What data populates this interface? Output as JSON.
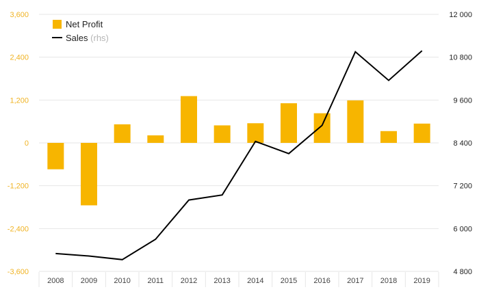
{
  "chart_data": {
    "type": "bar+line",
    "title": "",
    "categories": [
      "2008",
      "2009",
      "2010",
      "2011",
      "2012",
      "2013",
      "2014",
      "2015",
      "2016",
      "2017",
      "2018",
      "2019"
    ],
    "series": [
      {
        "name": "Net Profit",
        "type": "bar",
        "axis": "left",
        "color": "#f7b500",
        "values": [
          -740,
          -1750,
          520,
          210,
          1310,
          490,
          550,
          1110,
          830,
          1190,
          330,
          540
        ]
      },
      {
        "name": "Sales",
        "name_suffix": "(rhs)",
        "type": "line",
        "axis": "right",
        "color": "#000000",
        "values": [
          5300,
          5230,
          5130,
          5700,
          6800,
          6940,
          8440,
          8100,
          8890,
          10950,
          10150,
          10980
        ]
      }
    ],
    "left_axis": {
      "ylim": [
        -3600,
        3600
      ],
      "ticks": [
        -3600,
        -2400,
        -1200,
        0,
        1200,
        2400,
        3600
      ],
      "tick_labels": [
        "-3,600",
        "-2,400",
        "-1,200",
        "0",
        "1,200",
        "2,400",
        "3,600"
      ],
      "color": "#f0b323"
    },
    "right_axis": {
      "ylim": [
        4800,
        12000
      ],
      "ticks": [
        4800,
        6000,
        7200,
        8400,
        9600,
        10800,
        12000
      ],
      "tick_labels": [
        "4 800",
        "6 000",
        "7 200",
        "8 400",
        "9 600",
        "10 800",
        "12 000"
      ]
    },
    "grid": true,
    "legend_position": "top-left",
    "xlabel": "",
    "ylabel": ""
  }
}
